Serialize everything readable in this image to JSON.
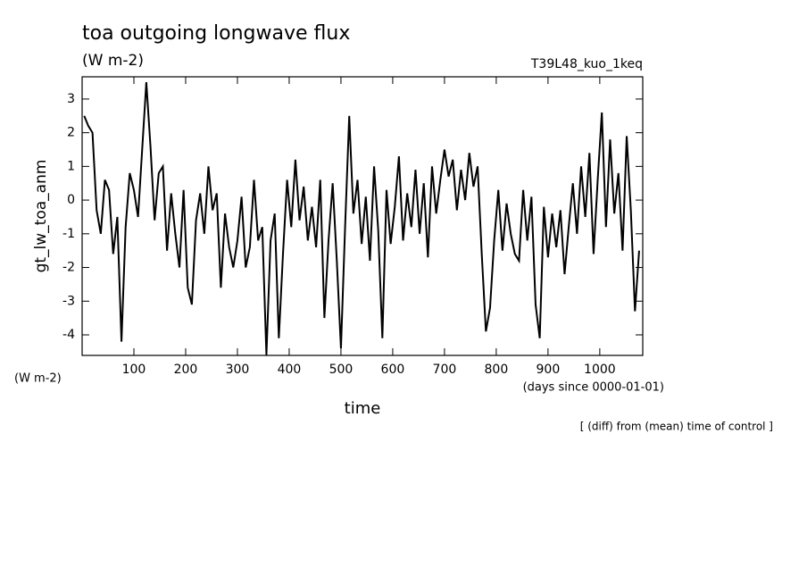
{
  "chart_data": {
    "type": "line",
    "title": "toa outgoing longwave flux",
    "subtitle": "(W m-2)",
    "annotation_right": "T39L48_kuo_1keq",
    "ylabel": "gt_lw_toa_anm",
    "yunits": "(W m-2)",
    "xunits": "(days since 0000-01-01)",
    "xlabel": "time",
    "footnote": "[ (diff) from (mean) time of control ]",
    "xlim": [
      0,
      1083
    ],
    "ylim": [
      -4.61,
      3.66
    ],
    "xticks": [
      100,
      200,
      300,
      400,
      500,
      600,
      700,
      800,
      900,
      1000
    ],
    "yticks": [
      -4,
      -3,
      -2,
      -1,
      0,
      1,
      2,
      3
    ],
    "color": "#000000",
    "x": [
      4,
      12,
      20,
      28,
      36,
      44,
      52,
      60,
      68,
      76,
      84,
      92,
      100,
      108,
      116,
      124,
      132,
      140,
      148,
      156,
      164,
      172,
      180,
      188,
      196,
      204,
      212,
      220,
      228,
      236,
      244,
      252,
      260,
      268,
      276,
      284,
      292,
      300,
      308,
      316,
      324,
      332,
      340,
      348,
      356,
      364,
      372,
      380,
      388,
      396,
      404,
      412,
      420,
      428,
      436,
      444,
      452,
      460,
      468,
      476,
      484,
      492,
      500,
      508,
      516,
      524,
      532,
      540,
      548,
      556,
      564,
      572,
      580,
      588,
      596,
      604,
      612,
      620,
      628,
      636,
      644,
      652,
      660,
      668,
      676,
      684,
      692,
      700,
      708,
      716,
      724,
      732,
      740,
      748,
      756,
      764,
      772,
      780,
      788,
      796,
      804,
      812,
      820,
      828,
      836,
      844,
      852,
      860,
      868,
      876,
      884,
      892,
      900,
      908,
      916,
      924,
      932,
      940,
      948,
      956,
      964,
      972,
      980,
      988,
      996,
      1004,
      1012,
      1020,
      1028,
      1036,
      1044,
      1052,
      1060,
      1068,
      1076
    ],
    "values": [
      2.5,
      2.2,
      2.0,
      -0.3,
      -1.0,
      0.6,
      0.3,
      -1.6,
      -0.5,
      -4.2,
      -0.8,
      0.8,
      0.3,
      -0.5,
      1.5,
      3.5,
      1.6,
      -0.6,
      0.8,
      1.0,
      -1.5,
      0.2,
      -1.0,
      -2.0,
      0.3,
      -2.6,
      -3.1,
      -0.6,
      0.2,
      -1.0,
      1.0,
      -0.3,
      0.2,
      -2.6,
      -0.4,
      -1.4,
      -2.0,
      -1.2,
      0.1,
      -2.0,
      -1.4,
      0.6,
      -1.2,
      -0.8,
      -4.6,
      -1.2,
      -0.4,
      -4.1,
      -1.6,
      0.6,
      -0.8,
      1.2,
      -0.6,
      0.4,
      -1.2,
      -0.2,
      -1.4,
      0.6,
      -3.5,
      -1.2,
      0.5,
      -1.8,
      -4.4,
      -0.8,
      2.5,
      -0.4,
      0.6,
      -1.3,
      0.1,
      -1.8,
      1.0,
      -0.9,
      -4.1,
      0.3,
      -1.3,
      -0.2,
      1.3,
      -1.2,
      0.2,
      -0.8,
      0.9,
      -1.0,
      0.5,
      -1.7,
      1.0,
      -0.4,
      0.6,
      1.5,
      0.7,
      1.2,
      -0.3,
      0.9,
      0.0,
      1.4,
      0.4,
      1.0,
      -1.6,
      -3.9,
      -3.2,
      -1.2,
      0.3,
      -1.5,
      -0.1,
      -1.0,
      -1.6,
      -1.8,
      0.3,
      -1.2,
      0.1,
      -3.1,
      -4.1,
      -0.2,
      -1.7,
      -0.4,
      -1.4,
      -0.3,
      -2.2,
      -0.8,
      0.5,
      -1.0,
      1.0,
      -0.5,
      1.4,
      -1.6,
      0.6,
      2.6,
      -0.8,
      1.8,
      -0.4,
      0.8,
      -1.5,
      1.9,
      -0.3,
      -3.3,
      -1.5
    ]
  }
}
